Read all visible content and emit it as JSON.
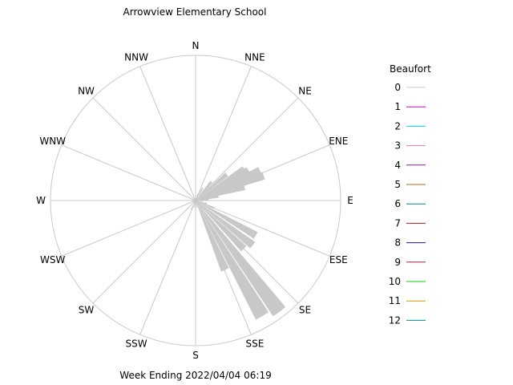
{
  "chart_data": {
    "type": "windrose",
    "title": "Arrowview Elementary School",
    "footer": "Week Ending 2022/04/04 06:19",
    "directions": [
      "N",
      "NNE",
      "NE",
      "ENE",
      "E",
      "ESE",
      "SE",
      "SSE",
      "S",
      "SSW",
      "SW",
      "WSW",
      "W",
      "WNW",
      "NW",
      "NNW"
    ],
    "radial_max": 1.0,
    "petals": [
      {
        "azimuth_deg": 3,
        "value": 0.04
      },
      {
        "azimuth_deg": 18,
        "value": 0.05
      },
      {
        "azimuth_deg": 30,
        "value": 0.1
      },
      {
        "azimuth_deg": 40,
        "value": 0.17
      },
      {
        "azimuth_deg": 50,
        "value": 0.28
      },
      {
        "azimuth_deg": 57,
        "value": 0.4
      },
      {
        "azimuth_deg": 60,
        "value": 0.42
      },
      {
        "azimuth_deg": 65,
        "value": 0.49
      },
      {
        "azimuth_deg": 70,
        "value": 0.5
      },
      {
        "azimuth_deg": 75,
        "value": 0.35
      },
      {
        "azimuth_deg": 80,
        "value": 0.16
      },
      {
        "azimuth_deg": 85,
        "value": 0.09
      },
      {
        "azimuth_deg": 95,
        "value": 0.05
      },
      {
        "azimuth_deg": 105,
        "value": 0.08
      },
      {
        "azimuth_deg": 112,
        "value": 0.14
      },
      {
        "azimuth_deg": 120,
        "value": 0.48
      },
      {
        "azimuth_deg": 128,
        "value": 0.5
      },
      {
        "azimuth_deg": 135,
        "value": 0.47
      },
      {
        "azimuth_deg": 143,
        "value": 0.96
      },
      {
        "azimuth_deg": 150,
        "value": 0.92
      },
      {
        "azimuth_deg": 157,
        "value": 0.52
      },
      {
        "azimuth_deg": 170,
        "value": 0.05
      },
      {
        "azimuth_deg": 190,
        "value": 0.05
      },
      {
        "azimuth_deg": 205,
        "value": 0.07
      },
      {
        "azimuth_deg": 230,
        "value": 0.03
      },
      {
        "azimuth_deg": 290,
        "value": 0.03
      },
      {
        "azimuth_deg": 335,
        "value": 0.03
      }
    ],
    "legend": {
      "title": "Beaufort",
      "entries": [
        {
          "label": "0",
          "color": "#c8c8c8"
        },
        {
          "label": "1",
          "color": "#cc00cc"
        },
        {
          "label": "2",
          "color": "#00d8d8"
        },
        {
          "label": "3",
          "color": "#e07aa8"
        },
        {
          "label": "4",
          "color": "#8a18a0"
        },
        {
          "label": "5",
          "color": "#b86a18"
        },
        {
          "label": "6",
          "color": "#008a8a"
        },
        {
          "label": "7",
          "color": "#b81818"
        },
        {
          "label": "8",
          "color": "#1c1c88"
        },
        {
          "label": "9",
          "color": "#b01838"
        },
        {
          "label": "10",
          "color": "#00d800"
        },
        {
          "label": "11",
          "color": "#e09000"
        },
        {
          "label": "12",
          "color": "#008aa8"
        }
      ]
    },
    "colors": {
      "petal": "#c8c8c8",
      "grid": "#c8c8c8",
      "text": "#000000"
    }
  }
}
